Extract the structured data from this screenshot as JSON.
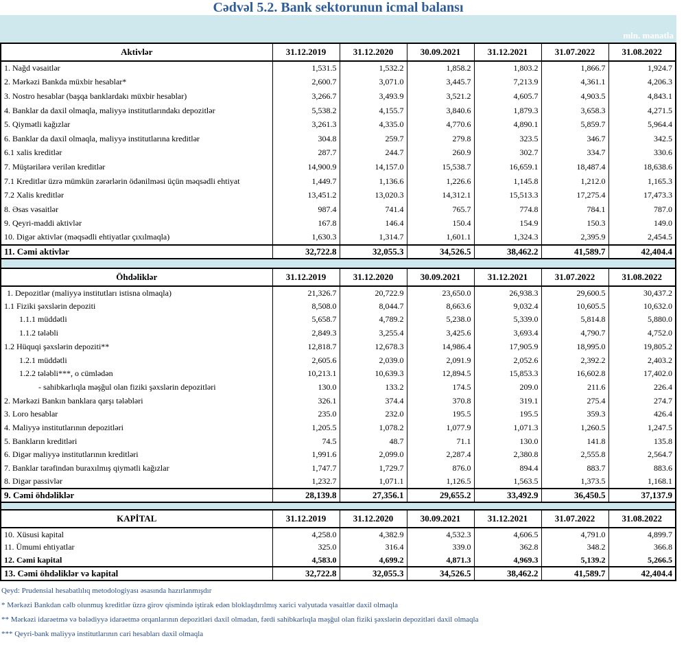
{
  "title": "Cədvəl 5.2. Bank sektorunun icmal balansı",
  "unit": "mln. manatla",
  "sections": [
    {
      "header": [
        "Aktivlər",
        "31.12.2019",
        "31.12.2020",
        "30.09.2021",
        "31.12.2021",
        "31.07.2022",
        "31.08.2022"
      ],
      "rows": [
        [
          "1. Nağd vəsaitlər",
          "1,531.5",
          "1,532.2",
          "1,858.2",
          "1,803.2",
          "1,866.7",
          "1,924.7"
        ],
        [
          "2. Mərkəzi Bankda müxbir hesablar*",
          "2,600.7",
          "3,071.0",
          "3,445.7",
          "7,213.9",
          "4,361.1",
          "4,206.3"
        ],
        [
          "3. Nostro hesablar (başqa banklardakı müxbir hesablar)",
          "3,266.7",
          "3,493.9",
          "3,521.2",
          "4,605.7",
          "4,903.5",
          "4,843.1"
        ],
        [
          "4. Banklar da daxil olmaqla, maliyyə institutlarındakı depozitlər",
          "5,538.2",
          "4,155.7",
          "3,840.6",
          "1,879.3",
          "3,658.3",
          "4,271.5"
        ],
        [
          "5. Qiymətli kağızlar",
          "3,261.3",
          "4,335.0",
          "4,770.6",
          "4,890.1",
          "5,859.7",
          "5,964.4"
        ],
        [
          "6. Banklar da daxil olmaqla, maliyyə institutlarına kreditlər",
          "304.8",
          "259.7",
          "279.8",
          "323.5",
          "346.7",
          "342.5"
        ],
        [
          "6.1 xalis kreditlər",
          "287.7",
          "244.7",
          "260.9",
          "302.7",
          "334.7",
          "330.6"
        ],
        [
          "7. Müştərilərə verilən kreditlər",
          "14,900.9",
          "14,157.0",
          "15,538.7",
          "16,659.1",
          "18,487.4",
          "18,638.6"
        ],
        [
          "7.1 Kreditlər üzrə mümkün zərərlərin ödənilməsi üçün məqsədli ehtiyat",
          "1,449.7",
          "1,136.6",
          "1,226.6",
          "1,145.8",
          "1,212.0",
          "1,165.3"
        ],
        [
          "7.2 Xalis kreditlər",
          "13,451.2",
          "13,020.3",
          "14,312.1",
          "15,513.3",
          "17,275.4",
          "17,473.3"
        ],
        [
          "8.  Əsas vəsaitlər",
          "987.4",
          "741.4",
          "765.7",
          "774.8",
          "784.1",
          "787.0"
        ],
        [
          "9. Qeyri-maddi aktivlər",
          "167.8",
          "146.4",
          "150.4",
          "154.9",
          "150.3",
          "149.0"
        ],
        [
          "10. Digər aktivlər (məqsədli ehtiyatlar çıxılmaqla)",
          "1,630.3",
          "1,314.7",
          "1,601.1",
          "1,324.3",
          "2,395.9",
          "2,454.5"
        ]
      ],
      "total": [
        "11. Cəmi aktivlər",
        "32,722.8",
        "32,055.3",
        "34,526.5",
        "38,462.2",
        "41,589.7",
        "42,404.4"
      ]
    },
    {
      "header": [
        "Öhdəliklər",
        "31.12.2019",
        "31.12.2020",
        "30.09.2021",
        "31.12.2021",
        "31.07.2022",
        "31.08.2022"
      ],
      "rows": [
        [
          "1. Depozitlər (maliyyə institutları istisna olmaqla)",
          "21,326.7",
          "20,722.9",
          "23,650.0",
          "26,938.3",
          "29,600.5",
          "30,437.2"
        ],
        [
          "1.1 Fiziki şəxslərin depoziti",
          "8,508.0",
          "8,044.7",
          "8,663.6",
          "9,032.4",
          "10,605.5",
          "10,632.0"
        ],
        [
          "1.1.1 müddətli",
          "5,658.7",
          "4,789.2",
          "5,238.0",
          "5,339.0",
          "5,814.8",
          "5,880.0"
        ],
        [
          "1.1.2 tələbli",
          "2,849.3",
          "3,255.4",
          "3,425.6",
          "3,693.4",
          "4,790.7",
          "4,752.0"
        ],
        [
          "1.2 Hüquqi şəxslərin depoziti**",
          "12,818.7",
          "12,678.3",
          "14,986.4",
          "17,905.9",
          "18,995.0",
          "19,805.2"
        ],
        [
          "1.2.1 müddətli",
          "2,605.6",
          "2,039.0",
          "2,091.9",
          "2,052.6",
          "2,392.2",
          "2,403.2"
        ],
        [
          "1.2.2 tələbli***, o cümlədən",
          "10,213.1",
          "10,639.3",
          "12,894.5",
          "15,853.3",
          "16,602.8",
          "17,402.0"
        ],
        [
          "- sahibkarlıqla məşğul olan fiziki şəxslərin depozitləri",
          "130.0",
          "133.2",
          "174.5",
          "209.0",
          "211.6",
          "226.4"
        ],
        [
          "2. Mərkəzi Bankın banklara qarşı tələbləri",
          "326.1",
          "374.4",
          "370.8",
          "319.1",
          "275.4",
          "274.7"
        ],
        [
          "3. Loro hesablar",
          "235.0",
          "232.0",
          "195.5",
          "195.5",
          "359.3",
          "426.4"
        ],
        [
          "4. Maliyyə institutlarının  depozitləri",
          "1,205.5",
          "1,078.2",
          "1,077.9",
          "1,071.3",
          "1,260.5",
          "1,247.5"
        ],
        [
          "5. Bankların kreditləri",
          "74.5",
          "48.7",
          "71.1",
          "130.0",
          "141.8",
          "135.8"
        ],
        [
          "6. Digər maliyyə institutlarının kreditləri",
          "1,991.6",
          "2,099.0",
          "2,287.4",
          "2,380.8",
          "2,555.8",
          "2,564.7"
        ],
        [
          "7. Banklar tərəfindən buraxılmış qiymətli kağızlar",
          "1,747.7",
          "1,729.7",
          "876.0",
          "894.4",
          "883.7",
          "883.6"
        ],
        [
          "8. Digər passivlər",
          "1,232.7",
          "1,071.1",
          "1,126.5",
          "1,563.5",
          "1,373.5",
          "1,168.1"
        ]
      ],
      "total": [
        "9. Cəmi öhdəliklər",
        "28,139.8",
        "27,356.1",
        "29,655.2",
        "33,492.9",
        "36,450.5",
        "37,137.9"
      ]
    },
    {
      "header": [
        "KAPİTAL",
        "31.12.2019",
        "31.12.2020",
        "30.09.2021",
        "31.12.2021",
        "31.07.2022",
        "31.08.2022"
      ],
      "rows": [
        [
          "10. Xüsusi kapital",
          "4,258.0",
          "4,382.9",
          "4,532.3",
          "4,606.5",
          "4,791.0",
          "4,899.7"
        ],
        [
          "11. Ümumi ehtiyatlar",
          "325.0",
          "316.4",
          "339.0",
          "362.8",
          "348.2",
          "366.8"
        ],
        [
          "12. Cəmi kapital",
          "4,583.0",
          "4,699.2",
          "4,871.3",
          "4,969.3",
          "5,139.2",
          "5,266.5"
        ]
      ],
      "total": [
        "13. Cəmi öhdəliklər və kapital",
        "32,722.8",
        "32,055.3",
        "34,526.5",
        "38,462.2",
        "41,589.7",
        "42,404.4"
      ]
    }
  ],
  "notes": [
    "Qeyd: Prudensial hesabatlılıq metodologiyası əsasında hazırlanmışdır",
    "* Mərkəzi Bankdan cəlb olunmuş kreditlər üzrə girov qismində iştirak edən bloklaşdırılmış xarici valyutada vəsaitlər daxil olmaqla",
    "** Mərkəzi idarəetmə və bələdiyyə idarəetmə orqanlarının depozitləri daxil olmadan, fərdi sahibkarlıqla məşğul olan fiziki şəxslərin depozitləri daxil olmaqla",
    "*** Qeyri-bank maliyyə institutlarının cari hesabları daxil olmaqla"
  ]
}
